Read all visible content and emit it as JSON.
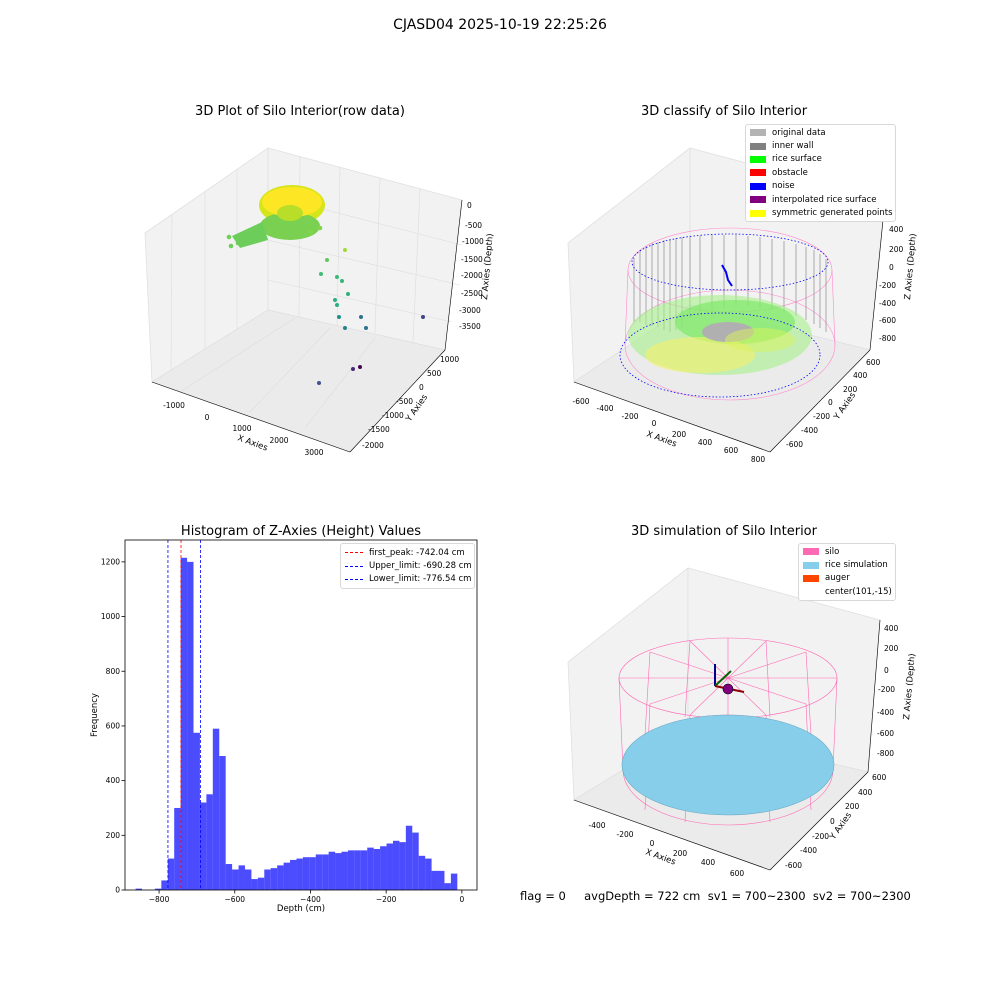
{
  "figure": {
    "suptitle": "CJASD04 2025-10-19 22:25:26",
    "footer": "flag = 0     avgDepth = 722 cm  sv1 = 700~2300  sv2 = 700~2300"
  },
  "panels": {
    "raw": {
      "title": "3D Plot of Silo Interior(row data)",
      "xlabel": "X Axies",
      "ylabel": "Y Axies",
      "zlabel": "Z Axies (Depth)",
      "xticks": [
        "-1000",
        "0",
        "1000",
        "2000",
        "3000"
      ],
      "yticks": [
        "1000",
        "500",
        "0",
        "-500",
        "-1000",
        "-1500",
        "-2000"
      ],
      "zticks": [
        "0",
        "-500",
        "-1000",
        "-1500",
        "-2000",
        "-2500",
        "-3000",
        "-3500"
      ]
    },
    "classify": {
      "title": "3D classify of Silo Interior",
      "xlabel": "X Axies",
      "ylabel": "Y Axies",
      "zlabel": "Z Axies (Depth)",
      "xticks": [
        "-600",
        "-400",
        "-200",
        "0",
        "200",
        "400",
        "600",
        "800"
      ],
      "yticks": [
        "600",
        "400",
        "200",
        "0",
        "-200",
        "-400",
        "-600"
      ],
      "zticks": [
        "400",
        "200",
        "0",
        "-200",
        "-400",
        "-600",
        "-800"
      ],
      "legend": [
        {
          "label": "original data",
          "color": "#b3b3b3"
        },
        {
          "label": "inner wall",
          "color": "#808080"
        },
        {
          "label": "rice surface",
          "color": "#00ff00"
        },
        {
          "label": "obstacle",
          "color": "#ff0000"
        },
        {
          "label": "noise",
          "color": "#0000ff"
        },
        {
          "label": "interpolated rice surface",
          "color": "#800080"
        },
        {
          "label": "symmetric generated points",
          "color": "#ffff00"
        }
      ]
    },
    "histogram": {
      "title": "Histogram of Z-Axies (Height) Values",
      "xlabel": "Depth (cm)",
      "ylabel": "Frequency",
      "legend": [
        {
          "label": "first_peak: -742.04 cm",
          "color": "#ff0000"
        },
        {
          "label": "Upper_limit: -690.28 cm",
          "color": "#0000ff"
        },
        {
          "label": "Lower_limit: -776.54 cm",
          "color": "#0000ff"
        }
      ]
    },
    "simulation": {
      "title": "3D simulation of Silo Interior",
      "xlabel": "X Axies",
      "ylabel": "Y Axies",
      "zlabel": "Z Axies (Depth)",
      "xticks": [
        "-400",
        "-200",
        "0",
        "200",
        "400",
        "600"
      ],
      "yticks": [
        "600",
        "400",
        "200",
        "0",
        "-200",
        "-400",
        "-600"
      ],
      "zticks": [
        "400",
        "200",
        "0",
        "-200",
        "-400",
        "-600",
        "-800"
      ],
      "legend": [
        {
          "label": "silo",
          "color": "#ff69b4"
        },
        {
          "label": "rice simulation",
          "color": "#87ceeb"
        },
        {
          "label": "auger",
          "color": "#ff4500"
        },
        {
          "label": "center(101,-15)",
          "color": ""
        }
      ]
    }
  },
  "chart_data": {
    "type": "bar",
    "title": "Histogram of Z-Axies (Height) Values",
    "xlabel": "Depth (cm)",
    "ylabel": "Frequency",
    "xlim": [
      -890,
      40
    ],
    "ylim": [
      0,
      1280
    ],
    "xticks": [
      -800,
      -600,
      -400,
      -200,
      0
    ],
    "yticks": [
      0,
      200,
      400,
      600,
      800,
      1000,
      1200
    ],
    "bin_width": 17,
    "bin_starts": [
      -862,
      -845,
      -828,
      -811,
      -794,
      -777,
      -760,
      -743,
      -726,
      -709,
      -692,
      -675,
      -658,
      -641,
      -624,
      -607,
      -590,
      -573,
      -556,
      -539,
      -522,
      -505,
      -488,
      -471,
      -454,
      -437,
      -420,
      -403,
      -386,
      -369,
      -352,
      -335,
      -318,
      -301,
      -284,
      -267,
      -250,
      -233,
      -216,
      -199,
      -182,
      -165,
      -148,
      -131,
      -114,
      -97,
      -80,
      -63,
      -46,
      -29,
      -12
    ],
    "values": [
      5,
      0,
      0,
      5,
      35,
      115,
      300,
      1215,
      1200,
      575,
      320,
      350,
      590,
      490,
      95,
      75,
      90,
      75,
      40,
      45,
      75,
      80,
      90,
      100,
      110,
      115,
      120,
      120,
      130,
      130,
      140,
      135,
      140,
      145,
      145,
      145,
      155,
      150,
      160,
      170,
      180,
      175,
      235,
      210,
      125,
      115,
      70,
      70,
      25,
      60,
      0
    ],
    "color": "#0000ff",
    "vlines": [
      {
        "name": "first_peak: -742.04 cm",
        "x": -742.04,
        "color": "#ff0000"
      },
      {
        "name": "Upper_limit: -690.28 cm",
        "x": -690.28,
        "color": "#0000ff"
      },
      {
        "name": "Lower_limit: -776.54 cm",
        "x": -776.54,
        "color": "#0000ff"
      }
    ],
    "legend_position": "top-right",
    "grid": false
  }
}
